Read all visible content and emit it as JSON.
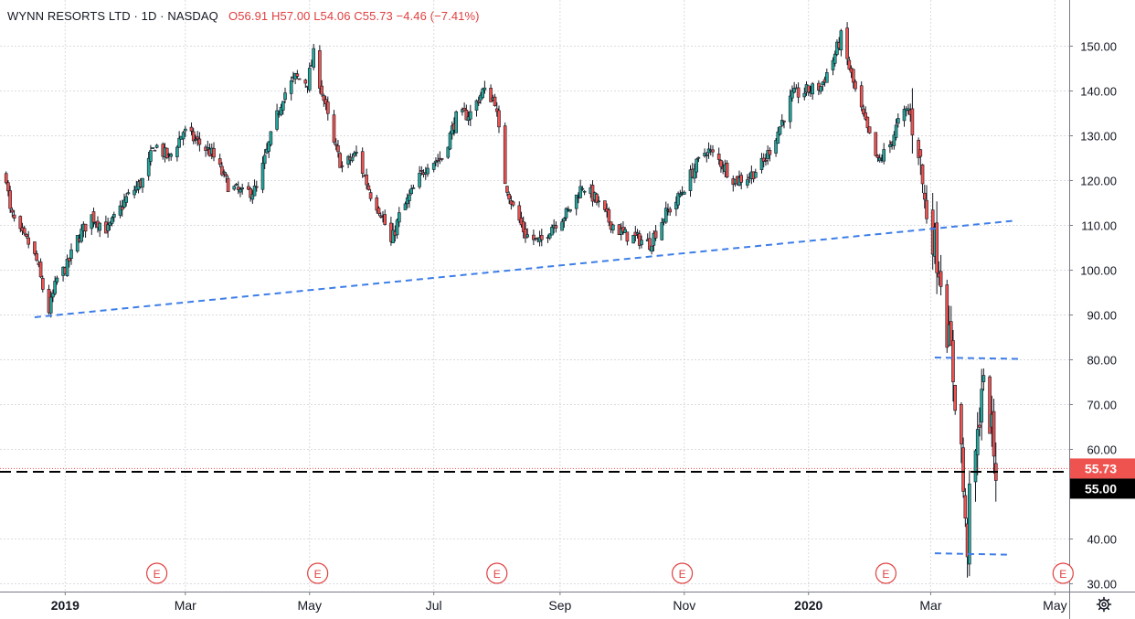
{
  "symbol": {
    "name": "WYNN RESORTS LTD",
    "interval": "1D",
    "exchange": "NASDAQ",
    "sep": "·",
    "open": "O56.91",
    "high": "H57.00",
    "low": "L54.06",
    "close": "C55.73",
    "change": "−4.46 (−7.41%)"
  },
  "price_badges": {
    "last": "55.73",
    "level": "55.00",
    "last_color": "#ef5350",
    "level_color": "#000000"
  },
  "colors": {
    "up": "#26a69a",
    "down": "#ef5350",
    "wick": "#131722",
    "trend": "#3d7ee8",
    "grid": "#d8dbe0",
    "earnings": "#e04040"
  },
  "icons": {
    "settings": "gear-icon",
    "earnings": "E"
  },
  "chart_data": {
    "type": "candlestick",
    "title": "WYNN RESORTS LTD · 1D · NASDAQ",
    "x_labels": [
      "2019",
      "Mar",
      "May",
      "Jul",
      "Sep",
      "Nov",
      "2020",
      "Mar",
      "May"
    ],
    "x_label_dates": [
      "2019-01-01",
      "2019-03-01",
      "2019-05-01",
      "2019-07-01",
      "2019-09-01",
      "2019-11-01",
      "2020-01-01",
      "2020-03-01",
      "2020-05-01"
    ],
    "x_range": [
      "2018-11-30",
      "2020-05-08"
    ],
    "y_ticks": [
      30,
      40,
      60,
      70,
      80,
      90,
      100,
      110,
      120,
      130,
      140,
      150
    ],
    "y_tick_labels": [
      "30.00",
      "40.00",
      "60.00",
      "70.00",
      "80.00",
      "90.00",
      "100.00",
      "110.00",
      "120.00",
      "130.00",
      "140.00",
      "150.00"
    ],
    "ylim": [
      30,
      153
    ],
    "grid": true,
    "last_price": 55.73,
    "price_path": [
      [
        "2018-12-03",
        121
      ],
      [
        "2018-12-05",
        113
      ],
      [
        "2018-12-10",
        108
      ],
      [
        "2018-12-14",
        106
      ],
      [
        "2018-12-18",
        102
      ],
      [
        "2018-12-21",
        96
      ],
      [
        "2018-12-24",
        91
      ],
      [
        "2018-12-28",
        98
      ],
      [
        "2019-01-02",
        101
      ],
      [
        "2019-01-07",
        107
      ],
      [
        "2019-01-14",
        112
      ],
      [
        "2019-01-22",
        109
      ],
      [
        "2019-01-31",
        116
      ],
      [
        "2019-02-08",
        120
      ],
      [
        "2019-02-14",
        128
      ],
      [
        "2019-02-21",
        125
      ],
      [
        "2019-02-28",
        131
      ],
      [
        "2019-03-06",
        129
      ],
      [
        "2019-03-14",
        126
      ],
      [
        "2019-03-22",
        119
      ],
      [
        "2019-03-29",
        117
      ],
      [
        "2019-04-05",
        118
      ],
      [
        "2019-04-11",
        128
      ],
      [
        "2019-04-18",
        139
      ],
      [
        "2019-04-24",
        143
      ],
      [
        "2019-04-30",
        142
      ],
      [
        "2019-05-03",
        148
      ],
      [
        "2019-05-07",
        140
      ],
      [
        "2019-05-13",
        128
      ],
      [
        "2019-05-17",
        123
      ],
      [
        "2019-05-24",
        126
      ],
      [
        "2019-05-31",
        117
      ],
      [
        "2019-06-05",
        113
      ],
      [
        "2019-06-10",
        106
      ],
      [
        "2019-06-14",
        112
      ],
      [
        "2019-06-21",
        118
      ],
      [
        "2019-06-28",
        124
      ],
      [
        "2019-07-05",
        125
      ],
      [
        "2019-07-12",
        134
      ],
      [
        "2019-07-19",
        135
      ],
      [
        "2019-07-25",
        140
      ],
      [
        "2019-07-31",
        138
      ],
      [
        "2019-08-05",
        120
      ],
      [
        "2019-08-09",
        114
      ],
      [
        "2019-08-15",
        108
      ],
      [
        "2019-08-22",
        106
      ],
      [
        "2019-08-28",
        110
      ],
      [
        "2019-09-05",
        113
      ],
      [
        "2019-09-12",
        119
      ],
      [
        "2019-09-18",
        116
      ],
      [
        "2019-09-25",
        111
      ],
      [
        "2019-10-02",
        108
      ],
      [
        "2019-10-09",
        107
      ],
      [
        "2019-10-15",
        106
      ],
      [
        "2019-10-22",
        112
      ],
      [
        "2019-10-29",
        116
      ],
      [
        "2019-11-05",
        122
      ],
      [
        "2019-11-12",
        127
      ],
      [
        "2019-11-19",
        124
      ],
      [
        "2019-11-26",
        120
      ],
      [
        "2019-12-03",
        121
      ],
      [
        "2019-12-10",
        124
      ],
      [
        "2019-12-17",
        131
      ],
      [
        "2019-12-24",
        139
      ],
      [
        "2019-12-31",
        140
      ],
      [
        "2020-01-07",
        141
      ],
      [
        "2020-01-13",
        147
      ],
      [
        "2020-01-17",
        152
      ],
      [
        "2020-01-24",
        140
      ],
      [
        "2020-01-30",
        131
      ],
      [
        "2020-02-04",
        124
      ],
      [
        "2020-02-10",
        128
      ],
      [
        "2020-02-14",
        133
      ],
      [
        "2020-02-19",
        136
      ],
      [
        "2020-02-24",
        128
      ],
      [
        "2020-02-27",
        115
      ],
      [
        "2020-03-02",
        108
      ],
      [
        "2020-03-06",
        99
      ],
      [
        "2020-03-09",
        87
      ],
      [
        "2020-03-11",
        81
      ],
      [
        "2020-03-13",
        72
      ],
      [
        "2020-03-16",
        60
      ],
      [
        "2020-03-18",
        42
      ],
      [
        "2020-03-19",
        39
      ],
      [
        "2020-03-20",
        48
      ],
      [
        "2020-03-24",
        62
      ],
      [
        "2020-03-26",
        75
      ],
      [
        "2020-03-27",
        73
      ],
      [
        "2020-03-30",
        67
      ],
      [
        "2020-04-01",
        60
      ],
      [
        "2020-04-02",
        55.73
      ]
    ],
    "annotations": {
      "trendlines": [
        {
          "from": [
            "2018-12-17",
            89.5
          ],
          "to": [
            "2020-04-10",
            111
          ]
        },
        {
          "from": [
            "2020-03-03",
            80.5
          ],
          "to": [
            "2020-04-14",
            80.2
          ]
        },
        {
          "from": [
            "2020-03-03",
            36.8
          ],
          "to": [
            "2020-04-09",
            36.5
          ]
        }
      ],
      "horizontal_level": 55.0,
      "earnings_dates": [
        "2019-02-15",
        "2019-05-05",
        "2019-08-01",
        "2019-10-31",
        "2020-02-08",
        "2020-05-05"
      ]
    }
  }
}
